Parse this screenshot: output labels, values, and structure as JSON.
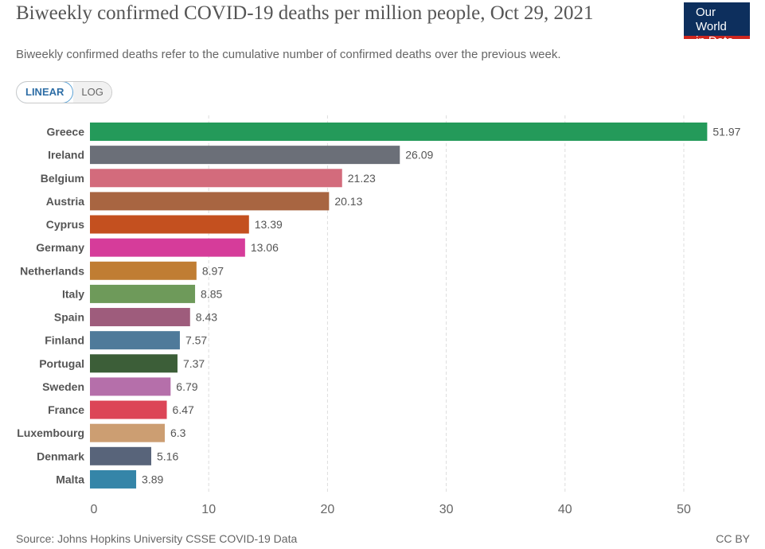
{
  "header": {
    "title": "Biweekly confirmed COVID-19 deaths per million people, Oct 29, 2021",
    "subtitle": "Biweekly confirmed deaths refer to the cumulative number of confirmed deaths over the previous week.",
    "logo_line1": "Our World",
    "logo_line2": "in Data"
  },
  "controls": {
    "linear_label": "LINEAR",
    "log_label": "LOG"
  },
  "footer": {
    "source": "Source: Johns Hopkins University CSSE COVID-19 Data",
    "license": "CC BY"
  },
  "colors": {
    "logo_bg": "#0d2f5d",
    "logo_accent": "#ce261e"
  },
  "chart_data": {
    "type": "bar",
    "orientation": "horizontal",
    "title": "Biweekly confirmed COVID-19 deaths per million people, Oct 29, 2021",
    "xlabel": "",
    "ylabel": "",
    "xlim": [
      0,
      55
    ],
    "xticks": [
      0,
      10,
      20,
      30,
      40,
      50
    ],
    "grid": true,
    "categories": [
      "Greece",
      "Ireland",
      "Belgium",
      "Austria",
      "Cyprus",
      "Germany",
      "Netherlands",
      "Italy",
      "Spain",
      "Finland",
      "Portugal",
      "Sweden",
      "France",
      "Luxembourg",
      "Denmark",
      "Malta"
    ],
    "values": [
      51.97,
      26.09,
      21.23,
      20.13,
      13.39,
      13.06,
      8.97,
      8.85,
      8.43,
      7.57,
      7.37,
      6.79,
      6.47,
      6.3,
      5.16,
      3.89
    ],
    "value_labels": [
      "51.97",
      "26.09",
      "21.23",
      "20.13",
      "13.39",
      "13.06",
      "8.97",
      "8.85",
      "8.43",
      "7.57",
      "7.37",
      "6.79",
      "6.47",
      "6.3",
      "5.16",
      "3.89"
    ],
    "bar_colors": [
      "#249a5a",
      "#6b6f78",
      "#d36b7c",
      "#a86541",
      "#c4501f",
      "#d63c9a",
      "#c07d33",
      "#6e9a5a",
      "#9e5c7c",
      "#4f7a9a",
      "#3c5e38",
      "#b56faa",
      "#dc4557",
      "#cc9e72",
      "#58647a",
      "#3585a8"
    ]
  }
}
